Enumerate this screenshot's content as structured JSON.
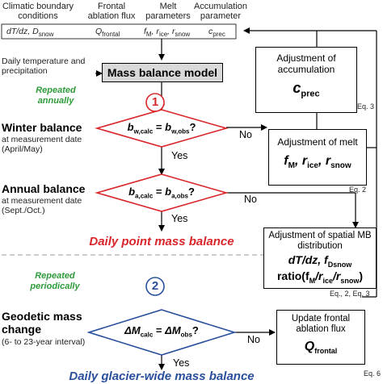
{
  "header": {
    "col1": "Climatic boundary conditions",
    "col2": "Frontal ablation flux",
    "col3": "Melt parameters",
    "col4": "Accumulation parameter"
  },
  "params_row": {
    "p1": "dT/dz, D",
    "p1_sub": "snow",
    "p2": "Q",
    "p2_sub": "frontal",
    "p3a": "f",
    "p3a_sub": "M",
    "p3b": ", r",
    "p3b_sub": "ice",
    "p3c": ", r",
    "p3c_sub": "snow",
    "p4": "c",
    "p4_sub": "prec"
  },
  "daily_input": "Daily temperature and precipitation",
  "model_box": "Mass balance model",
  "repeated_annually": "Repeated annually",
  "step1": "1",
  "winter": {
    "title": "Winter balance",
    "sub": "at measurement date (April/May)"
  },
  "diamond1": {
    "a": "b",
    "a_sub": "w,calc",
    "eq": " = ",
    "b": "b",
    "b_sub": "w,obs",
    "q": "?"
  },
  "annual": {
    "title": "Annual balance",
    "sub": "at measurement date (Sept./Oct.)"
  },
  "diamond2": {
    "a": "b",
    "a_sub": "a,calc",
    "eq": " = ",
    "b": "b",
    "b_sub": "a,obs",
    "q": "?"
  },
  "yes": "Yes",
  "no": "No",
  "daily_point": "Daily point mass balance",
  "repeated_periodically": "Repeated periodically",
  "step2": "2",
  "geodetic": {
    "title": "Geodetic mass change",
    "sub": "(6- to 23-year interval)"
  },
  "diamond3": {
    "a": "ΔM",
    "a_sub": "calc",
    "eq": " = ",
    "b": "ΔM",
    "b_sub": "obs",
    "q": "?"
  },
  "daily_glacier": "Daily glacier-wide mass balance",
  "adj_accum": {
    "title": "Adjustment of accumulation",
    "param": "c",
    "param_sub": "prec",
    "eq": "Eq. 3"
  },
  "adj_melt": {
    "title": "Adjustment of melt",
    "p1": "f",
    "p1_sub": "M",
    "p2": ", r",
    "p2_sub": "ice",
    "p3": ", r",
    "p3_sub": "snow",
    "eq": "Eq. 2"
  },
  "adj_spatial": {
    "title": "Adjustment of spatial MB distribution",
    "line1": "dT/dz, f",
    "line1_sub": "Dsnow",
    "line2a": "ratio(f",
    "line2a_sub": "M",
    "line2b": "/r",
    "line2b_sub": "ice",
    "line2c": "/r",
    "line2c_sub": "snow",
    "line2d": ")",
    "eq": "Eq., 2, Eq. 3"
  },
  "update_frontal": {
    "title": "Update frontal ablation flux",
    "param": "Q",
    "param_sub": "frontal",
    "eq": "Eq. 6"
  },
  "colors": {
    "red": "#d8262b",
    "blue": "#2a4f9c",
    "green": "#2e9b3a",
    "model_fill": "#d9d9d9"
  }
}
